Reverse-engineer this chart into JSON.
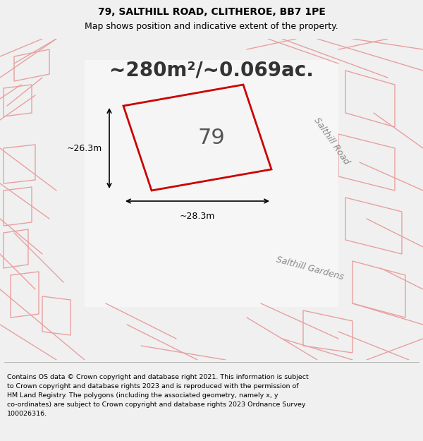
{
  "title_line1": "79, SALTHILL ROAD, CLITHEROE, BB7 1PE",
  "title_line2": "Map shows position and indicative extent of the property.",
  "area_text": "~280m²/~0.069ac.",
  "label_79": "79",
  "dim_width": "~28.3m",
  "dim_height": "~26.3m",
  "disclaimer_lines": [
    "Contains OS data © Crown copyright and database right 2021. This information is subject",
    "to Crown copyright and database rights 2023 and is reproduced with the permission of",
    "HM Land Registry. The polygons (including the associated geometry, namely x, y",
    "co-ordinates) are subject to Crown copyright and database rights 2023 Ordnance Survey",
    "100026316."
  ],
  "map_bg": "#e0e0e0",
  "property_fill": "#f5f5f5",
  "property_edge": "#cc0000",
  "road_line_color": "#e8a0a0",
  "street_name1": "Salthill Road",
  "street_name2": "Salthill Gardens",
  "fig_width": 6.0,
  "fig_height": 6.25
}
